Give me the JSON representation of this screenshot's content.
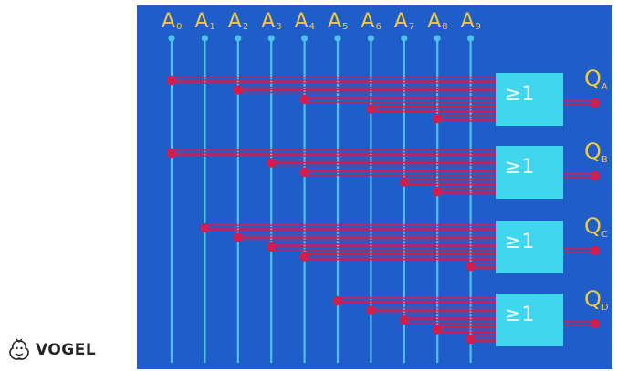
{
  "diagram": {
    "colors": {
      "panel": "#1f5ec8",
      "input_line": "#4fc0ee",
      "wire": "#d21e4e",
      "gate": "#3fd6ee",
      "label": "#f2c93a",
      "gate_text": "#1f5ec8"
    },
    "inputs": [
      {
        "letter": "A",
        "sub": "0"
      },
      {
        "letter": "A",
        "sub": "1"
      },
      {
        "letter": "A",
        "sub": "2"
      },
      {
        "letter": "A",
        "sub": "3"
      },
      {
        "letter": "A",
        "sub": "4"
      },
      {
        "letter": "A",
        "sub": "5"
      },
      {
        "letter": "A",
        "sub": "6"
      },
      {
        "letter": "A",
        "sub": "7"
      },
      {
        "letter": "A",
        "sub": "8"
      },
      {
        "letter": "A",
        "sub": "9"
      }
    ],
    "gates": [
      {
        "symbol": "≥1",
        "output": {
          "letter": "Q",
          "sub": "A"
        },
        "inputs": [
          0,
          2,
          4,
          6,
          8
        ]
      },
      {
        "symbol": "≥1",
        "output": {
          "letter": "Q",
          "sub": "B"
        },
        "inputs": [
          0,
          3,
          4,
          7,
          8
        ]
      },
      {
        "symbol": "≥1",
        "output": {
          "letter": "Q",
          "sub": "C"
        },
        "inputs": [
          1,
          2,
          3,
          4,
          9
        ]
      },
      {
        "symbol": "≥1",
        "output": {
          "letter": "Q",
          "sub": "D"
        },
        "inputs": [
          5,
          6,
          7,
          8,
          9
        ]
      }
    ]
  },
  "publisher": {
    "name": "VOGEL",
    "logo_icon": "vogel-bird-icon"
  }
}
